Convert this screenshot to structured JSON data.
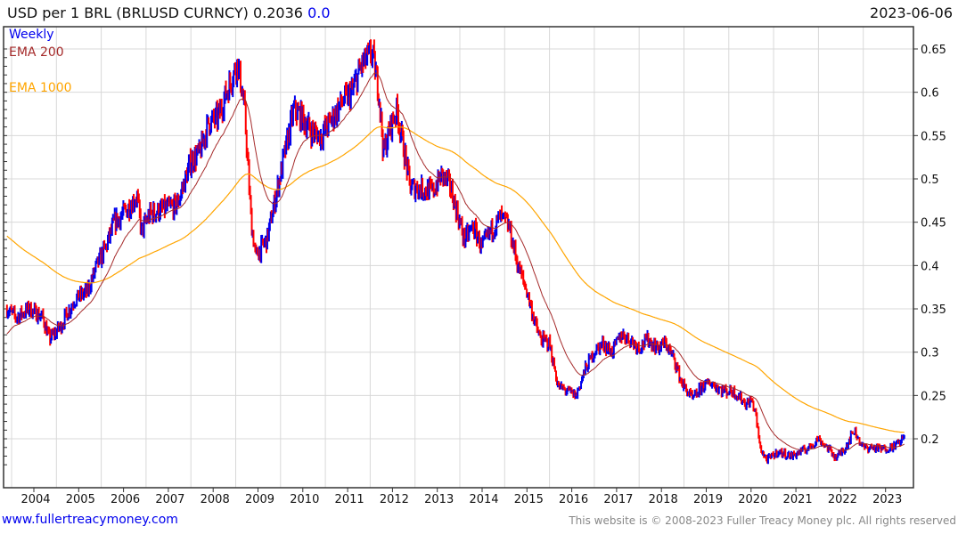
{
  "header": {
    "title": "USD per 1 BRL (BRLUSD CURNCY) 0.2036",
    "change": "0.0",
    "date": "2023-06-06"
  },
  "footer": {
    "link": "www.fullertreacymoney.com",
    "copyright": "This website is © 2008-2023 Fuller Treacy Money plc. All rights reserved"
  },
  "colors": {
    "up": "#0000ee",
    "down": "#ff0000",
    "ema200": "#a52a2a",
    "ema1000": "#ffa500",
    "grid": "#d8d8d8"
  },
  "chart_data": {
    "type": "line",
    "title": "USD per 1 BRL (BRLUSD CURNCY) 0.2036",
    "frequency": "Weekly",
    "legend": [
      "Weekly",
      "EMA 200",
      "EMA 1000"
    ],
    "legend_placement": "top-left",
    "ylim": [
      0.16,
      0.66
    ],
    "yticks": [
      "0.2",
      "0.25",
      "0.3",
      "0.35",
      "0.4",
      "0.45",
      "0.5",
      "0.55",
      "0.6",
      "0.65"
    ],
    "xlim": [
      2003.35,
      2023.6
    ],
    "xticks": [
      "2004",
      "2005",
      "2006",
      "2007",
      "2008",
      "2009",
      "2010",
      "2011",
      "2012",
      "2013",
      "2014",
      "2015",
      "2016",
      "2017",
      "2018",
      "2019",
      "2020",
      "2021",
      "2022",
      "2023"
    ],
    "grid": true,
    "price_keypoints": [
      [
        2003.4,
        0.35
      ],
      [
        2003.6,
        0.34
      ],
      [
        2003.9,
        0.35
      ],
      [
        2004.2,
        0.34
      ],
      [
        2004.35,
        0.315
      ],
      [
        2004.6,
        0.33
      ],
      [
        2004.9,
        0.36
      ],
      [
        2005.2,
        0.37
      ],
      [
        2005.4,
        0.4
      ],
      [
        2005.6,
        0.42
      ],
      [
        2005.8,
        0.45
      ],
      [
        2006.0,
        0.46
      ],
      [
        2006.3,
        0.48
      ],
      [
        2006.4,
        0.44
      ],
      [
        2006.6,
        0.46
      ],
      [
        2006.9,
        0.465
      ],
      [
        2007.2,
        0.47
      ],
      [
        2007.5,
        0.52
      ],
      [
        2007.7,
        0.53
      ],
      [
        2007.9,
        0.565
      ],
      [
        2008.1,
        0.57
      ],
      [
        2008.3,
        0.6
      ],
      [
        2008.55,
        0.635
      ],
      [
        2008.7,
        0.58
      ],
      [
        2008.85,
        0.45
      ],
      [
        2008.95,
        0.41
      ],
      [
        2009.2,
        0.43
      ],
      [
        2009.4,
        0.48
      ],
      [
        2009.6,
        0.53
      ],
      [
        2009.8,
        0.58
      ],
      [
        2010.0,
        0.57
      ],
      [
        2010.2,
        0.555
      ],
      [
        2010.4,
        0.55
      ],
      [
        2010.6,
        0.565
      ],
      [
        2010.9,
        0.59
      ],
      [
        2011.1,
        0.6
      ],
      [
        2011.3,
        0.63
      ],
      [
        2011.55,
        0.645
      ],
      [
        2011.7,
        0.6
      ],
      [
        2011.8,
        0.53
      ],
      [
        2011.95,
        0.56
      ],
      [
        2012.1,
        0.58
      ],
      [
        2012.3,
        0.52
      ],
      [
        2012.4,
        0.49
      ],
      [
        2012.6,
        0.49
      ],
      [
        2012.9,
        0.485
      ],
      [
        2013.1,
        0.505
      ],
      [
        2013.3,
        0.49
      ],
      [
        2013.5,
        0.45
      ],
      [
        2013.6,
        0.43
      ],
      [
        2013.8,
        0.445
      ],
      [
        2014.0,
        0.42
      ],
      [
        2014.2,
        0.44
      ],
      [
        2014.4,
        0.455
      ],
      [
        2014.6,
        0.445
      ],
      [
        2014.8,
        0.4
      ],
      [
        2015.0,
        0.37
      ],
      [
        2015.2,
        0.33
      ],
      [
        2015.3,
        0.315
      ],
      [
        2015.5,
        0.31
      ],
      [
        2015.7,
        0.26
      ],
      [
        2015.9,
        0.255
      ],
      [
        2016.1,
        0.25
      ],
      [
        2016.3,
        0.28
      ],
      [
        2016.5,
        0.3
      ],
      [
        2016.7,
        0.31
      ],
      [
        2016.9,
        0.3
      ],
      [
        2017.1,
        0.32
      ],
      [
        2017.3,
        0.315
      ],
      [
        2017.5,
        0.305
      ],
      [
        2017.7,
        0.315
      ],
      [
        2017.9,
        0.305
      ],
      [
        2018.1,
        0.31
      ],
      [
        2018.3,
        0.29
      ],
      [
        2018.45,
        0.265
      ],
      [
        2018.7,
        0.245
      ],
      [
        2018.9,
        0.26
      ],
      [
        2019.1,
        0.265
      ],
      [
        2019.4,
        0.255
      ],
      [
        2019.6,
        0.255
      ],
      [
        2019.9,
        0.24
      ],
      [
        2020.0,
        0.245
      ],
      [
        2020.1,
        0.23
      ],
      [
        2020.2,
        0.19
      ],
      [
        2020.35,
        0.175
      ],
      [
        2020.6,
        0.185
      ],
      [
        2020.9,
        0.18
      ],
      [
        2021.1,
        0.185
      ],
      [
        2021.3,
        0.19
      ],
      [
        2021.5,
        0.2
      ],
      [
        2021.7,
        0.19
      ],
      [
        2021.9,
        0.178
      ],
      [
        2022.1,
        0.19
      ],
      [
        2022.3,
        0.21
      ],
      [
        2022.5,
        0.19
      ],
      [
        2022.7,
        0.19
      ],
      [
        2022.9,
        0.188
      ],
      [
        2023.1,
        0.19
      ],
      [
        2023.3,
        0.195
      ],
      [
        2023.43,
        0.2036
      ]
    ],
    "ema200_start": 0.32,
    "ema1000_start": 0.435,
    "last_value": 0.2036
  }
}
